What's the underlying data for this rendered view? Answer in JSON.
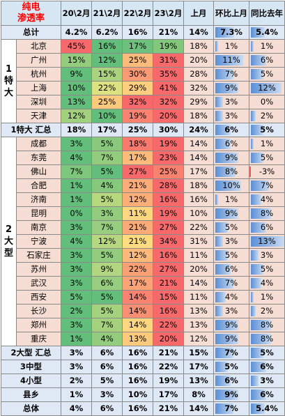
{
  "header": {
    "corner_line1": "纯电",
    "corner_line2": "渗透率",
    "cols": [
      "20\\2月",
      "21\\2月",
      "22\\2月",
      "23\\2月",
      "上月",
      "环比上月",
      "同比去年"
    ]
  },
  "colors": {
    "high": "#f8696b",
    "mid": "#ffeb84",
    "low": "#63be7b",
    "bar": "#5b8fd6",
    "negbar": "#ff3b3b"
  },
  "total": {
    "label": "总计",
    "v": [
      "4.2%",
      "6.2%",
      "16%",
      "21%",
      "14%",
      "7.3%",
      "5.4%"
    ],
    "mom_pct": 7.3,
    "yoy_pct": 5.4
  },
  "group1": {
    "label": "1特大",
    "rows": [
      {
        "city": "北京",
        "v": [
          "45%",
          "16%",
          "17%",
          "19%",
          "18%",
          "1%",
          "1%"
        ],
        "n": [
          45,
          16,
          17,
          19
        ],
        "mom": 1,
        "yoy": 1
      },
      {
        "city": "广州",
        "v": [
          "15%",
          "12%",
          "25%",
          "31%",
          "20%",
          "11%",
          "6%"
        ],
        "n": [
          15,
          12,
          25,
          31
        ],
        "mom": 11,
        "yoy": 6
      },
      {
        "city": "杭州",
        "v": [
          "9%",
          "15%",
          "30%",
          "35%",
          "28%",
          "7%",
          "5%"
        ],
        "n": [
          9,
          15,
          30,
          35
        ],
        "mom": 7,
        "yoy": 5
      },
      {
        "city": "上海",
        "v": [
          "10%",
          "22%",
          "29%",
          "41%",
          "32%",
          "9%",
          "12%"
        ],
        "n": [
          10,
          22,
          29,
          41
        ],
        "mom": 9,
        "yoy": 12
      },
      {
        "city": "深圳",
        "v": [
          "13%",
          "25%",
          "32%",
          "32%",
          "29%",
          "3%",
          "0%"
        ],
        "n": [
          13,
          25,
          32,
          32
        ],
        "mom": 3,
        "yoy": 0
      },
      {
        "city": "天津",
        "v": [
          "12%",
          "10%",
          "19%",
          "20%",
          "18%",
          "3%",
          "2%"
        ],
        "n": [
          12,
          10,
          19,
          20
        ],
        "mom": 3,
        "yoy": 2
      }
    ],
    "summary": {
      "label": "1特大 汇总",
      "v": [
        "18%",
        "17%",
        "25%",
        "30%",
        "24%",
        "6%",
        "5%"
      ],
      "mom": 6,
      "yoy": 5
    }
  },
  "group2": {
    "label": "2大型",
    "rows": [
      {
        "city": "成都",
        "v": [
          "3%",
          "5%",
          "18%",
          "19%",
          "14%",
          "6%",
          "1%"
        ],
        "n": [
          3,
          5,
          18,
          19
        ],
        "mom": 6,
        "yoy": 1
      },
      {
        "city": "东莞",
        "v": [
          "4%",
          "7%",
          "17%",
          "23%",
          "14%",
          "9%",
          "5%"
        ],
        "n": [
          4,
          7,
          17,
          23
        ],
        "mom": 9,
        "yoy": 5
      },
      {
        "city": "佛山",
        "v": [
          "7%",
          "5%",
          "27%",
          "25%",
          "17%",
          "8%",
          "-3%"
        ],
        "n": [
          7,
          5,
          27,
          25
        ],
        "mom": 8,
        "yoy": -3
      },
      {
        "city": "合肥",
        "v": [
          "1%",
          "4%",
          "21%",
          "28%",
          "18%",
          "10%",
          "7%"
        ],
        "n": [
          1,
          4,
          21,
          28
        ],
        "mom": 10,
        "yoy": 7
      },
      {
        "city": "济南",
        "v": [
          "1%",
          "5%",
          "12%",
          "16%",
          "16%",
          "1%",
          "4%"
        ],
        "n": [
          1,
          5,
          12,
          16
        ],
        "mom": 1,
        "yoy": 4
      },
      {
        "city": "昆明",
        "v": [
          "0%",
          "3%",
          "11%",
          "19%",
          "10%",
          "9%",
          "8%"
        ],
        "n": [
          0,
          3,
          11,
          19
        ],
        "mom": 9,
        "yoy": 8
      },
      {
        "city": "南京",
        "v": [
          "3%",
          "7%",
          "21%",
          "27%",
          "22%",
          "5%",
          "6%"
        ],
        "n": [
          3,
          7,
          21,
          27
        ],
        "mom": 5,
        "yoy": 6
      },
      {
        "city": "宁波",
        "v": [
          "4%",
          "12%",
          "21%",
          "34%",
          "31%",
          "3%",
          "13%"
        ],
        "n": [
          4,
          12,
          21,
          34
        ],
        "mom": 3,
        "yoy": 13
      },
      {
        "city": "石家庄",
        "v": [
          "3%",
          "5%",
          "12%",
          "16%",
          "11%",
          "5%",
          "3%"
        ],
        "n": [
          3,
          5,
          12,
          16
        ],
        "mom": 5,
        "yoy": 3
      },
      {
        "city": "苏州",
        "v": [
          "3%",
          "9%",
          "22%",
          "27%",
          "20%",
          "6%",
          "5%"
        ],
        "n": [
          3,
          9,
          22,
          27
        ],
        "mom": 6,
        "yoy": 5
      },
      {
        "city": "武汉",
        "v": [
          "3%",
          "6%",
          "17%",
          "21%",
          "14%",
          "7%",
          "4%"
        ],
        "n": [
          3,
          6,
          17,
          21
        ],
        "mom": 7,
        "yoy": 4
      },
      {
        "city": "西安",
        "v": [
          "5%",
          "5%",
          "14%",
          "15%",
          "11%",
          "4%",
          "1%"
        ],
        "n": [
          5,
          5,
          14,
          15
        ],
        "mom": 4,
        "yoy": 1
      },
      {
        "city": "长沙",
        "v": [
          "2%",
          "5%",
          "14%",
          "16%",
          "13%",
          "3%",
          "2%"
        ],
        "n": [
          2,
          5,
          14,
          16
        ],
        "mom": 3,
        "yoy": 2
      },
      {
        "city": "郑州",
        "v": [
          "3%",
          "7%",
          "14%",
          "22%",
          "13%",
          "9%",
          "8%"
        ],
        "n": [
          3,
          7,
          14,
          22
        ],
        "mom": 9,
        "yoy": 8
      },
      {
        "city": "重庆",
        "v": [
          "1%",
          "4%",
          "13%",
          "20%",
          "12%",
          "9%",
          "8%"
        ],
        "n": [
          1,
          4,
          13,
          20
        ],
        "mom": 9,
        "yoy": 8
      }
    ],
    "summary": {
      "label": "2大型 汇总",
      "v": [
        "3%",
        "6%",
        "16%",
        "21%",
        "15%",
        "7%",
        "5%"
      ],
      "mom": 7,
      "yoy": 5
    }
  },
  "others": [
    {
      "label": "3中型",
      "v": [
        "3%",
        "6%",
        "16%",
        "22%",
        "17%",
        "5%",
        "6%"
      ],
      "mom": 5,
      "yoy": 6
    },
    {
      "label": "4小型",
      "v": [
        "2%",
        "5%",
        "16%",
        "19%",
        "13%",
        "6%",
        "3%"
      ],
      "mom": 6,
      "yoy": 3
    },
    {
      "label": "县乡",
      "v": [
        "1%",
        "3%",
        "10%",
        "17%",
        "8%",
        "9%",
        "6%"
      ],
      "mom": 9,
      "yoy": 6
    }
  ],
  "grand_total": {
    "label": "总体",
    "v": [
      "4%",
      "6%",
      "16%",
      "21%",
      "14%",
      "7%",
      "5.4%"
    ],
    "mom": 7,
    "yoy": 5.4
  }
}
